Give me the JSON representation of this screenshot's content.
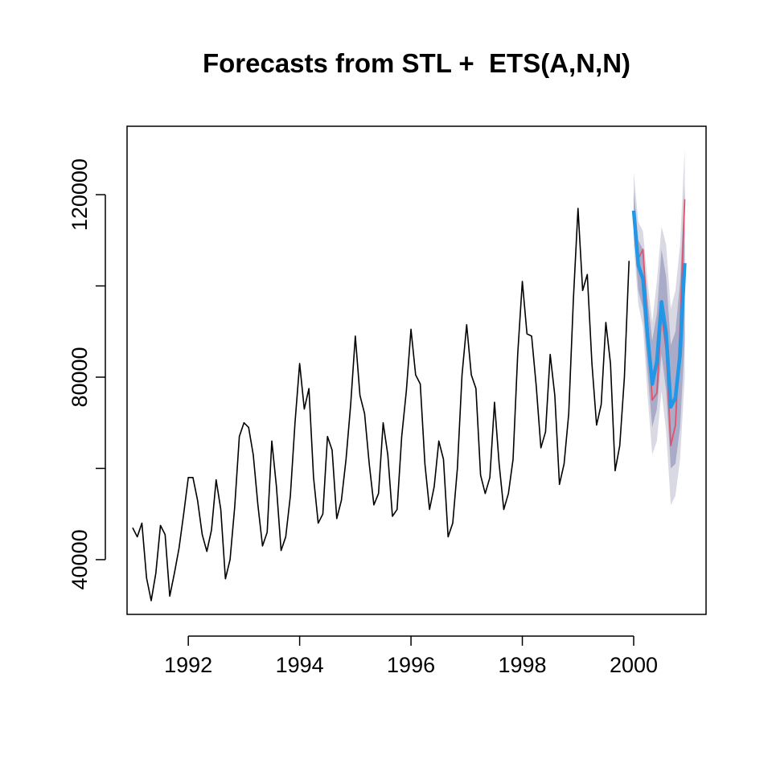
{
  "chart_data": {
    "type": "line",
    "title": "Forecasts from STL +  ETS(A,N,N)",
    "xlabel": "",
    "ylabel": "",
    "xlim": [
      1990.9,
      2001.3
    ],
    "ylim": [
      28000,
      135000
    ],
    "x_ticks": [
      "1992",
      "1994",
      "1996",
      "1998",
      "2000"
    ],
    "y_ticks": [
      "40000",
      "80000",
      "120000"
    ],
    "grid": false,
    "legend": "none",
    "series": [
      {
        "role": "observed",
        "color": "#000000",
        "x_start": 1991.0,
        "step": 0.0833333,
        "values": [
          47000,
          45000,
          48000,
          36000,
          31000,
          37000,
          47500,
          45500,
          32000,
          37000,
          42500,
          50000,
          58000,
          58000,
          53000,
          45500,
          41800,
          46500,
          57500,
          51000,
          35800,
          40000,
          51500,
          67000,
          70000,
          69000,
          63000,
          52000,
          43000,
          46000,
          66000,
          56000,
          42000,
          45000,
          54000,
          70000,
          83000,
          73000,
          77500,
          58000,
          48000,
          50000,
          67000,
          64000,
          49000,
          53000,
          62000,
          74000,
          89000,
          76000,
          72000,
          61000,
          52000,
          54500,
          70000,
          63000,
          49500,
          51000,
          67000,
          77000,
          90500,
          80500,
          78500,
          61000,
          51000,
          56000,
          66000,
          62000,
          45000,
          48000,
          60000,
          80500,
          91500,
          80500,
          77500,
          58500,
          54500,
          58000,
          74500,
          61000,
          51000,
          54500,
          62000,
          85000,
          101000,
          89500,
          89000,
          78000,
          64500,
          68000,
          85000,
          76000,
          56500,
          61000,
          72000,
          97000,
          117000,
          99000,
          102500,
          83000,
          69500,
          74000,
          92000,
          83000,
          59500,
          65000,
          80000,
          105500
        ]
      },
      {
        "role": "actual_test",
        "color": "#df536b",
        "x_start": 2000.0,
        "step": 0.0833333,
        "values": [
          116500,
          106000,
          108000,
          92000,
          75000,
          76500,
          94000,
          86000,
          65000,
          69500,
          91000,
          119000
        ]
      },
      {
        "role": "point_forecast",
        "color": "#2297e6",
        "x_start": 2000.0,
        "step": 0.0833333,
        "values": [
          116500,
          104500,
          101500,
          89000,
          78500,
          83500,
          96500,
          89500,
          73500,
          75500,
          85000,
          105000
        ]
      },
      {
        "role": "pi_80",
        "color": "#a9abc8",
        "x_start": 2000.0,
        "step": 0.0833333,
        "lower": [
          112000,
          99000,
          95000,
          81000,
          69000,
          73000,
          85000,
          77000,
          60000,
          61000,
          69000,
          88000
        ],
        "upper": [
          121000,
          110000,
          108000,
          97000,
          88000,
          94000,
          108000,
          102000,
          87000,
          90000,
          101000,
          122000
        ]
      },
      {
        "role": "pi_95",
        "color": "#d9d9e3",
        "x_start": 2000.0,
        "step": 0.0833333,
        "lower": [
          109000,
          96000,
          91000,
          76000,
          63000,
          66000,
          77000,
          68000,
          52000,
          54000,
          62000,
          80000
        ],
        "upper": [
          125000,
          114000,
          112000,
          101000,
          92000,
          101000,
          113000,
          109000,
          95000,
          99000,
          109000,
          130000
        ]
      }
    ]
  }
}
